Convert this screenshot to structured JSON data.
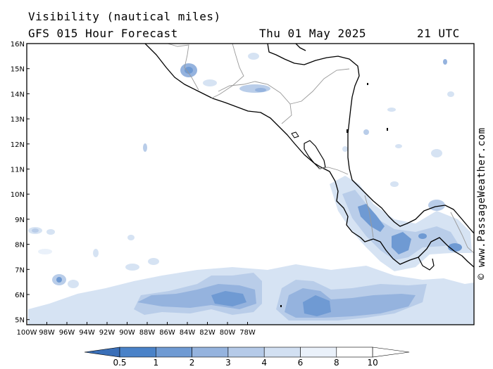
{
  "header": {
    "title": "Visibility (nautical miles)",
    "model": "GFS 015 Hour Forecast",
    "date": "Thu 01 May 2025",
    "time": "21 UTC"
  },
  "credit": "© www.PassageWeather.com",
  "axes": {
    "lon_labels": [
      "100W",
      "98W",
      "96W",
      "94W",
      "92W",
      "90W",
      "88W",
      "86W",
      "84W",
      "82W",
      "80W",
      "78W"
    ],
    "lat_labels": [
      "16N",
      "15N",
      "14N",
      "13N",
      "12N",
      "11N",
      "10N",
      "9N",
      "8N",
      "7N",
      "6N",
      "5N"
    ]
  },
  "colorbar": {
    "labels": [
      "0.5",
      "1",
      "2",
      "3",
      "4",
      "6",
      "8",
      "10"
    ],
    "colors": [
      "#3a6fb8",
      "#4a82c8",
      "#6f9ad3",
      "#95b3de",
      "#b5cae8",
      "#d2e0f2",
      "#eaf1fa",
      "#ffffff"
    ]
  },
  "colors": {
    "land_outline": "#000000",
    "border": "#999999",
    "map_bg": "#ffffff"
  }
}
